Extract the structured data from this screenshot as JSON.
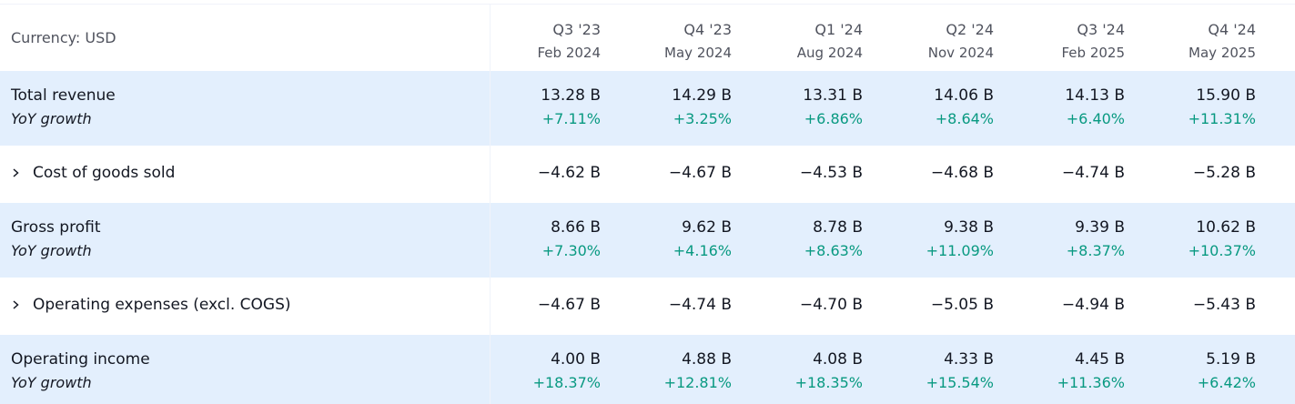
{
  "header": {
    "currency": "Currency: USD",
    "periods": [
      {
        "quarter": "Q3 '23",
        "date": "Feb 2024"
      },
      {
        "quarter": "Q4 '23",
        "date": "May 2024"
      },
      {
        "quarter": "Q1 '24",
        "date": "Aug 2024"
      },
      {
        "quarter": "Q2 '24",
        "date": "Nov 2024"
      },
      {
        "quarter": "Q3 '24",
        "date": "Feb 2025"
      },
      {
        "quarter": "Q4 '24",
        "date": "May 2025"
      }
    ]
  },
  "rows": [
    {
      "label": "Total revenue",
      "values": [
        "13.28 B",
        "14.29 B",
        "13.31 B",
        "14.06 B",
        "14.13 B",
        "15.90 B"
      ],
      "growth_label": "YoY growth",
      "growth": [
        "+7.11%",
        "+3.25%",
        "+6.86%",
        "+8.64%",
        "+6.40%",
        "+11.31%"
      ]
    },
    {
      "label": "Cost of goods sold",
      "values": [
        "−4.62 B",
        "−4.67 B",
        "−4.53 B",
        "−4.68 B",
        "−4.74 B",
        "−5.28 B"
      ]
    },
    {
      "label": "Gross profit",
      "values": [
        "8.66 B",
        "9.62 B",
        "8.78 B",
        "9.38 B",
        "9.39 B",
        "10.62 B"
      ],
      "growth_label": "YoY growth",
      "growth": [
        "+7.30%",
        "+4.16%",
        "+8.63%",
        "+11.09%",
        "+8.37%",
        "+10.37%"
      ]
    },
    {
      "label": "Operating expenses (excl. COGS)",
      "values": [
        "−4.67 B",
        "−4.74 B",
        "−4.70 B",
        "−5.05 B",
        "−4.94 B",
        "−5.43 B"
      ]
    },
    {
      "label": "Operating income",
      "values": [
        "4.00 B",
        "4.88 B",
        "4.08 B",
        "4.33 B",
        "4.45 B",
        "5.19 B"
      ],
      "growth_label": "YoY growth",
      "growth": [
        "+18.37%",
        "+12.81%",
        "+18.35%",
        "+15.54%",
        "+11.36%",
        "+6.42%"
      ]
    }
  ]
}
